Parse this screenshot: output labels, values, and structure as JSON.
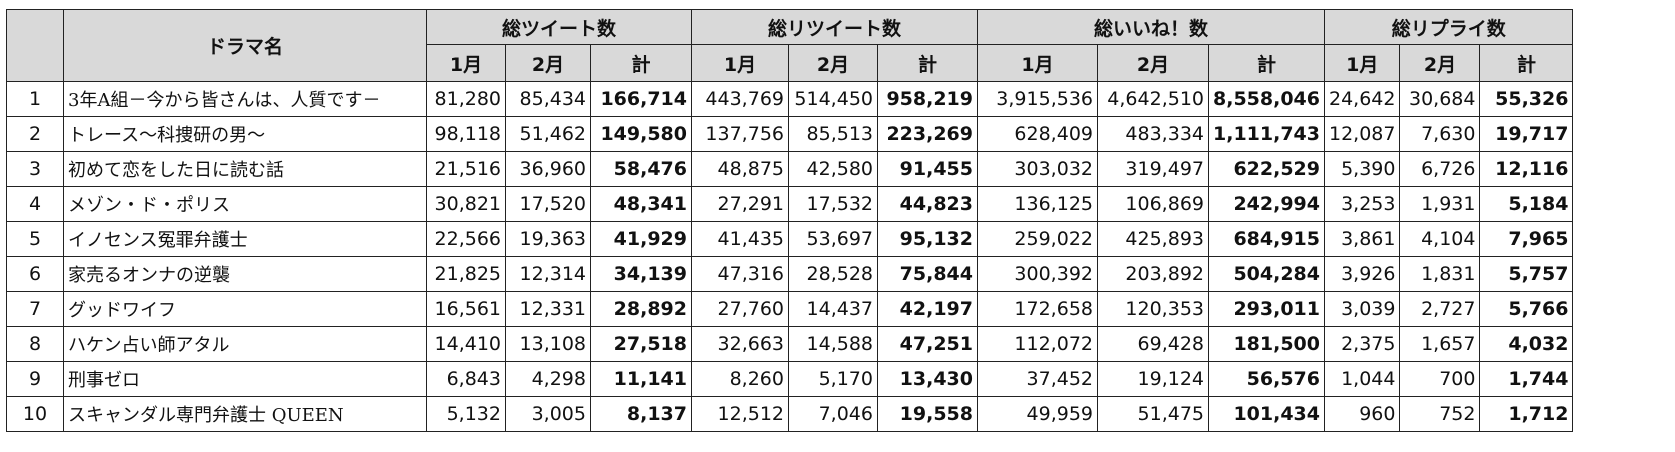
{
  "header": {
    "drama_label": "ドラマ名",
    "groups": [
      "総ツイート数",
      "総リツイート数",
      "総いいね！数",
      "総リプライ数"
    ],
    "sub": [
      "1月",
      "2月",
      "計"
    ]
  },
  "rows": [
    {
      "no": "1",
      "name": "3年A組－今から皆さんは、人質です－",
      "v": [
        "81,280",
        "85,434",
        "166,714",
        "443,769",
        "514,450",
        "958,219",
        "3,915,536",
        "4,642,510",
        "8,558,046",
        "24,642",
        "30,684",
        "55,326"
      ]
    },
    {
      "no": "2",
      "name": "トレース～科捜研の男～",
      "v": [
        "98,118",
        "51,462",
        "149,580",
        "137,756",
        "85,513",
        "223,269",
        "628,409",
        "483,334",
        "1,111,743",
        "12,087",
        "7,630",
        "19,717"
      ]
    },
    {
      "no": "3",
      "name": "初めて恋をした日に読む話",
      "v": [
        "21,516",
        "36,960",
        "58,476",
        "48,875",
        "42,580",
        "91,455",
        "303,032",
        "319,497",
        "622,529",
        "5,390",
        "6,726",
        "12,116"
      ]
    },
    {
      "no": "4",
      "name": "メゾン・ド・ポリス",
      "v": [
        "30,821",
        "17,520",
        "48,341",
        "27,291",
        "17,532",
        "44,823",
        "136,125",
        "106,869",
        "242,994",
        "3,253",
        "1,931",
        "5,184"
      ]
    },
    {
      "no": "5",
      "name": "イノセンス冤罪弁護士",
      "v": [
        "22,566",
        "19,363",
        "41,929",
        "41,435",
        "53,697",
        "95,132",
        "259,022",
        "425,893",
        "684,915",
        "3,861",
        "4,104",
        "7,965"
      ]
    },
    {
      "no": "6",
      "name": "家売るオンナの逆襲",
      "v": [
        "21,825",
        "12,314",
        "34,139",
        "47,316",
        "28,528",
        "75,844",
        "300,392",
        "203,892",
        "504,284",
        "3,926",
        "1,831",
        "5,757"
      ]
    },
    {
      "no": "7",
      "name": "グッドワイフ",
      "v": [
        "16,561",
        "12,331",
        "28,892",
        "27,760",
        "14,437",
        "42,197",
        "172,658",
        "120,353",
        "293,011",
        "3,039",
        "2,727",
        "5,766"
      ]
    },
    {
      "no": "8",
      "name": "ハケン占い師アタル",
      "v": [
        "14,410",
        "13,108",
        "27,518",
        "32,663",
        "14,588",
        "47,251",
        "112,072",
        "69,428",
        "181,500",
        "2,375",
        "1,657",
        "4,032"
      ]
    },
    {
      "no": "9",
      "name": "刑事ゼロ",
      "v": [
        "6,843",
        "4,298",
        "11,141",
        "8,260",
        "5,170",
        "13,430",
        "37,452",
        "19,124",
        "56,576",
        "1,044",
        "700",
        "1,744"
      ]
    },
    {
      "no": "10",
      "name": "スキャンダル専門弁護士 QUEEN",
      "v": [
        "5,132",
        "3,005",
        "8,137",
        "12,512",
        "7,046",
        "19,558",
        "49,959",
        "51,475",
        "101,434",
        "960",
        "752",
        "1,712"
      ]
    }
  ]
}
